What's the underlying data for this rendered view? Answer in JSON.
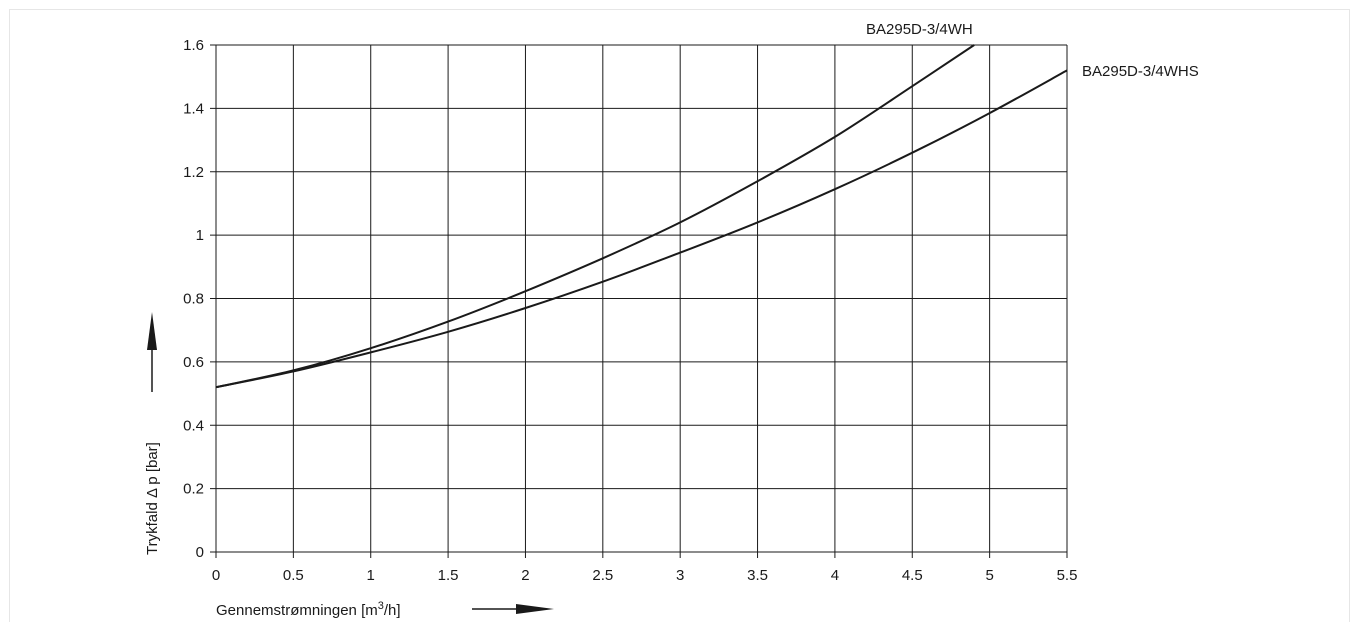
{
  "chart_data": {
    "type": "line",
    "title": "",
    "xlabel": "Gennemstrømningen [m³/h]",
    "xlabel_main": "Gennemstrømningen [m",
    "xlabel_sup": "3",
    "xlabel_tail": "/h]",
    "ylabel": "Trykfald Δ p [bar]",
    "xlim": [
      0,
      5.5
    ],
    "ylim": [
      0,
      1.6
    ],
    "x_ticks": [
      "0",
      "0.5",
      "1",
      "1.5",
      "2",
      "2.5",
      "3",
      "3.5",
      "4",
      "4.5",
      "5",
      "5.5"
    ],
    "y_ticks": [
      "0",
      "0.2",
      "0.4",
      "0.6",
      "0.8",
      "1",
      "1.2",
      "1.4",
      "1.6"
    ],
    "grid": true,
    "series": [
      {
        "name": "BA295D-3/4WH",
        "x": [
          0,
          0.5,
          1,
          1.5,
          2,
          2.5,
          3,
          3.5,
          4,
          4.5,
          4.9
        ],
        "y": [
          0.52,
          0.573,
          0.643,
          0.727,
          0.823,
          0.927,
          1.04,
          1.17,
          1.31,
          1.47,
          1.6
        ]
      },
      {
        "name": "BA295D-3/4WHS",
        "x": [
          0,
          0.5,
          1,
          1.5,
          2,
          2.5,
          3,
          3.5,
          4,
          4.5,
          5,
          5.5
        ],
        "y": [
          0.52,
          0.57,
          0.63,
          0.695,
          0.77,
          0.853,
          0.945,
          1.04,
          1.145,
          1.26,
          1.385,
          1.52
        ]
      }
    ]
  }
}
